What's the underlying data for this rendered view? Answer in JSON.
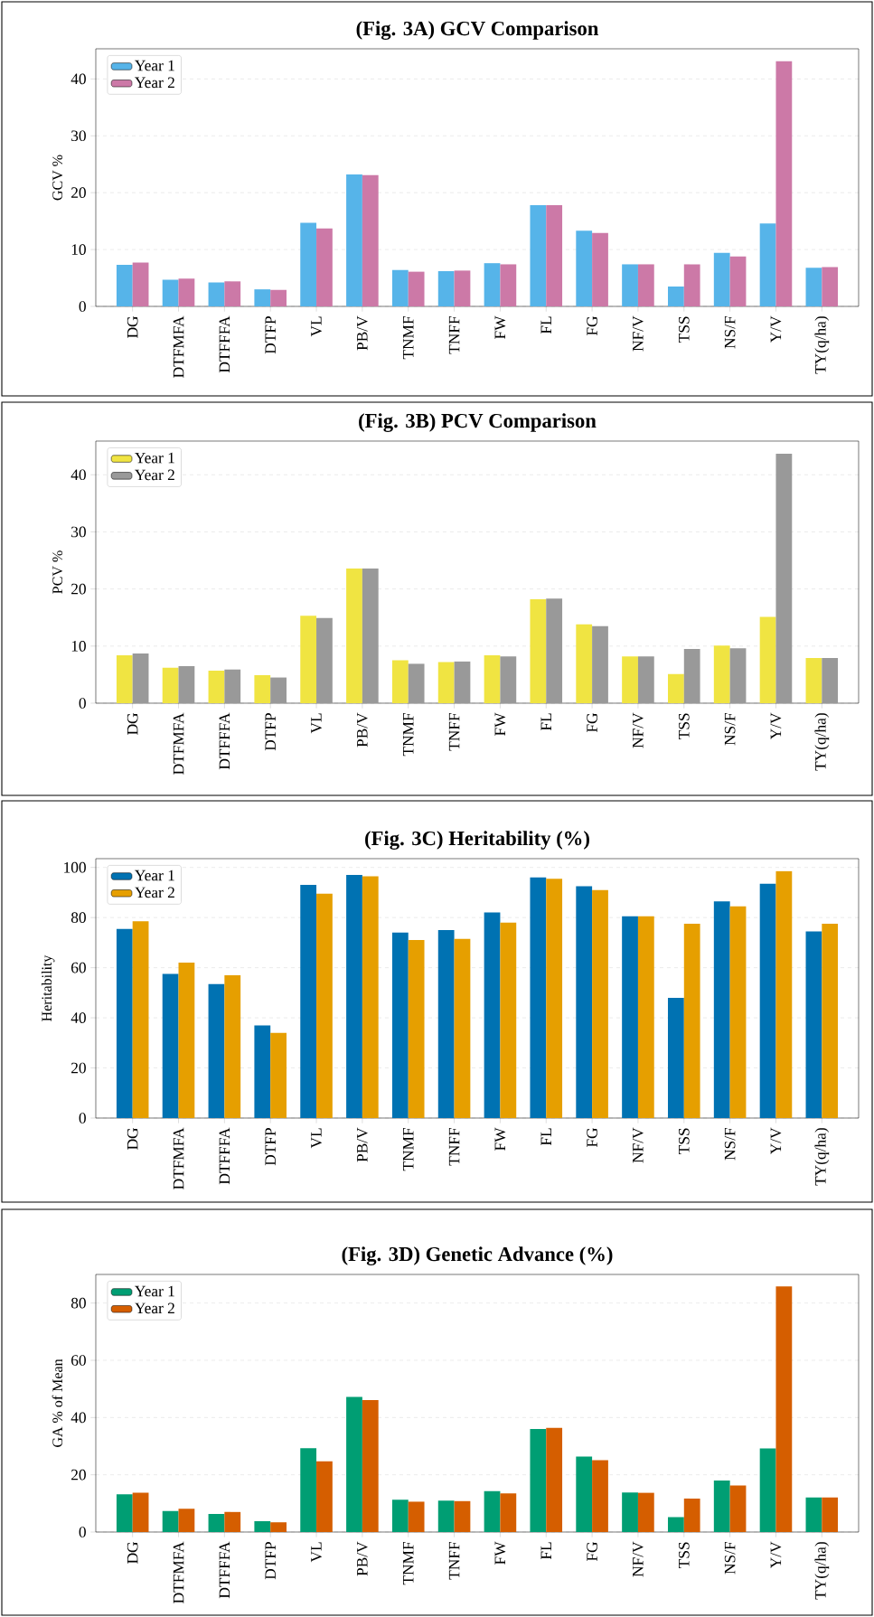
{
  "chart_data": [
    {
      "type": "bar",
      "title": "(Fig. 3A) GCV Comparison",
      "ylabel": "GCV %",
      "categories": [
        "DG",
        "DTFMFA",
        "DTFFFA",
        "DTFP",
        "VL",
        "PB/V",
        "TNMF",
        "TNFF",
        "FW",
        "FL",
        "FG",
        "NF/V",
        "TSS",
        "NS/F",
        "Y/V",
        "TY(q/ha)"
      ],
      "series": [
        {
          "name": "Year 1",
          "color": "#56b4e9",
          "values": [
            7.3,
            4.7,
            4.2,
            3.0,
            14.7,
            23.2,
            6.4,
            6.2,
            7.6,
            17.8,
            13.3,
            7.4,
            3.5,
            9.4,
            14.6,
            6.8
          ]
        },
        {
          "name": "Year 2",
          "color": "#cc79a7",
          "values": [
            7.7,
            4.9,
            4.4,
            2.9,
            13.7,
            23.1,
            6.1,
            6.3,
            7.4,
            17.8,
            12.9,
            7.4,
            7.4,
            8.8,
            43.1,
            6.9
          ]
        }
      ],
      "ylim": [
        0,
        45.3
      ],
      "yticks": [
        0,
        10,
        20,
        30,
        40
      ],
      "grid": "y",
      "legend": "top left"
    },
    {
      "type": "bar",
      "title": "(Fig. 3B) PCV Comparison",
      "ylabel": "PCV %",
      "categories": [
        "DG",
        "DTFMFA",
        "DTFFFA",
        "DTFP",
        "VL",
        "PB/V",
        "TNMF",
        "TNFF",
        "FW",
        "FL",
        "FG",
        "NF/V",
        "TSS",
        "NS/F",
        "Y/V",
        "TY(q/ha)"
      ],
      "series": [
        {
          "name": "Year 1",
          "color": "#f0e442",
          "values": [
            8.4,
            6.2,
            5.7,
            4.9,
            15.3,
            23.6,
            7.5,
            7.2,
            8.4,
            18.2,
            13.8,
            8.2,
            5.1,
            10.1,
            15.1,
            7.9
          ]
        },
        {
          "name": "Year 2",
          "color": "#999999",
          "values": [
            8.7,
            6.5,
            5.9,
            4.5,
            14.9,
            23.6,
            6.9,
            7.3,
            8.2,
            18.3,
            13.5,
            8.2,
            9.5,
            9.6,
            43.7,
            7.9
          ]
        }
      ],
      "ylim": [
        0,
        45.9
      ],
      "yticks": [
        0,
        10,
        20,
        30,
        40
      ],
      "grid": "y",
      "legend": "top left"
    },
    {
      "type": "bar",
      "title": "(Fig. 3C) Heritability (%)",
      "ylabel": "Heritability",
      "categories": [
        "DG",
        "DTFMFA",
        "DTFFFA",
        "DTFP",
        "VL",
        "PB/V",
        "TNMF",
        "TNFF",
        "FW",
        "FL",
        "FG",
        "NF/V",
        "TSS",
        "NS/F",
        "Y/V",
        "TY(q/ha)"
      ],
      "series": [
        {
          "name": "Year 1",
          "color": "#0072b2",
          "values": [
            75.5,
            57.5,
            53.5,
            37,
            93,
            97,
            74,
            75,
            82,
            96,
            92.5,
            80.5,
            48,
            86.5,
            93.5,
            74.5
          ]
        },
        {
          "name": "Year 2",
          "color": "#e69f00",
          "values": [
            78.5,
            62,
            57,
            34,
            89.5,
            96.5,
            71,
            71.5,
            78,
            95.5,
            91,
            80.5,
            77.5,
            84.5,
            98.5,
            77.5
          ]
        }
      ],
      "ylim": [
        0,
        103.5
      ],
      "yticks": [
        0,
        20,
        40,
        60,
        80,
        100
      ],
      "grid": "y",
      "legend": "top left"
    },
    {
      "type": "bar",
      "title": "(Fig. 3D) Genetic Advance (%)",
      "ylabel": "GA % of Mean",
      "categories": [
        "DG",
        "DTFMFA",
        "DTFFFA",
        "DTFP",
        "VL",
        "PB/V",
        "TNMF",
        "TNFF",
        "FW",
        "FL",
        "FG",
        "NF/V",
        "TSS",
        "NS/F",
        "Y/V",
        "TY(q/ha)"
      ],
      "series": [
        {
          "name": "Year 1",
          "color": "#009e73",
          "values": [
            13.2,
            7.3,
            6.3,
            3.8,
            29.3,
            47.2,
            11.3,
            11.0,
            14.3,
            36,
            26.4,
            13.8,
            5.2,
            18,
            29.2,
            12.1
          ]
        },
        {
          "name": "Year 2",
          "color": "#d55e00",
          "values": [
            13.7,
            8.1,
            7.0,
            3.4,
            24.7,
            46.1,
            10.6,
            10.8,
            13.5,
            36.4,
            25.1,
            13.7,
            11.7,
            16.3,
            85.8,
            12.1
          ]
        }
      ],
      "ylim": [
        0,
        90
      ],
      "yticks": [
        0,
        20,
        40,
        60,
        80
      ],
      "grid": "y",
      "legend": "top left"
    }
  ]
}
